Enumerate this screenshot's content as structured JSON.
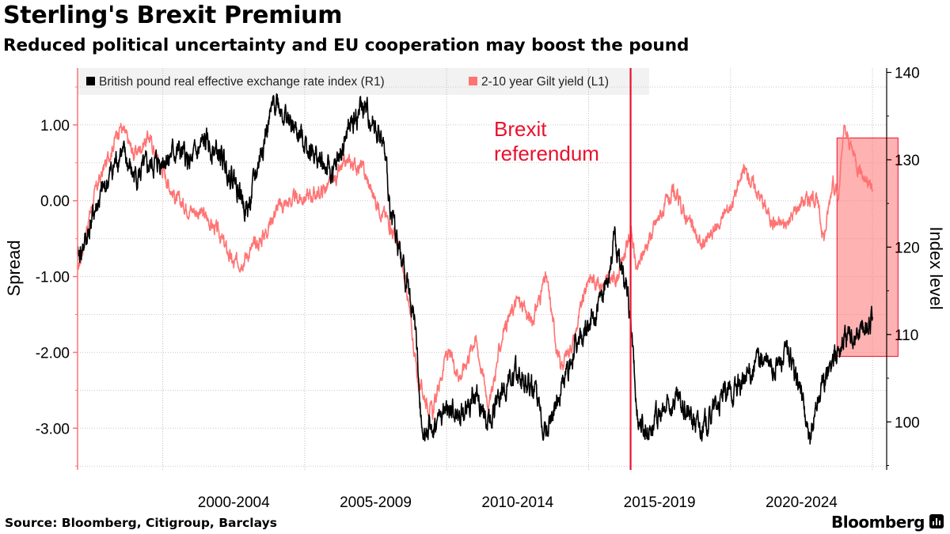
{
  "header": {
    "title": "Sterling's Brexit Premium",
    "subtitle": "Reduced political uncertainty and EU cooperation may boost the pound"
  },
  "footer": {
    "source": "Source: Bloomberg, Citigroup, Barclays",
    "brand": "Bloomberg"
  },
  "chart_data": {
    "type": "line",
    "title": "Sterling's Brexit Premium",
    "subtitle": "Reduced political uncertainty and EU cooperation may boost the pound",
    "xlabel": "",
    "ylabel_left": "Spread",
    "ylabel_right": "Index level",
    "xlim": [
      1997.0,
      2025.5
    ],
    "ylim_left": [
      -3.55,
      1.75
    ],
    "ylim_right": [
      94.5,
      140.5
    ],
    "yticks_left": [
      1.0,
      0.0,
      -1.0,
      -2.0,
      -3.0
    ],
    "yticks_left_labels": [
      "1.00",
      "0.00",
      "-1.00",
      "-2.00",
      "-3.00"
    ],
    "yticks_right": [
      140,
      130,
      120,
      110,
      100
    ],
    "yticks_right_labels": [
      "140",
      "130",
      "120",
      "110",
      "100"
    ],
    "xtick_positions": [
      2000.0,
      2005.0,
      2010.0,
      2015.0,
      2020.0,
      2025.0
    ],
    "x_category_labels": [
      {
        "label": "2000-2004",
        "center": 2002.5
      },
      {
        "label": "2005-2009",
        "center": 2007.5
      },
      {
        "label": "2010-2014",
        "center": 2012.5
      },
      {
        "label": "2015-2019",
        "center": 2017.5
      },
      {
        "label": "2020-2024",
        "center": 2022.5
      }
    ],
    "grid": true,
    "legend_position": "top-left",
    "series": [
      {
        "name": "British pound real effective exchange rate index (R1)",
        "axis": "right",
        "color": "#000000",
        "x": [
          1997.0,
          1997.3,
          1997.6,
          1998.0,
          1998.5,
          1999.0,
          1999.5,
          2000.0,
          2000.5,
          2001.0,
          2001.5,
          2002.0,
          2002.5,
          2003.0,
          2003.5,
          2004.0,
          2004.5,
          2005.0,
          2005.5,
          2006.0,
          2006.5,
          2007.0,
          2007.5,
          2007.8,
          2008.0,
          2008.3,
          2008.6,
          2008.9,
          2009.1,
          2009.5,
          2010.0,
          2010.5,
          2011.0,
          2011.5,
          2012.0,
          2012.5,
          2013.0,
          2013.5,
          2014.0,
          2014.5,
          2015.0,
          2015.5,
          2015.9,
          2016.3,
          2016.5,
          2016.7,
          2017.0,
          2017.5,
          2018.0,
          2018.5,
          2019.0,
          2019.5,
          2020.0,
          2020.5,
          2021.0,
          2021.5,
          2022.0,
          2022.5,
          2022.8,
          2023.0,
          2023.5,
          2024.0,
          2024.5,
          2025.0
        ],
        "values": [
          118.5,
          121.0,
          124.0,
          127.0,
          131.0,
          128.0,
          129.0,
          130.0,
          131.0,
          129.5,
          132.0,
          130.5,
          128.0,
          124.0,
          131.5,
          137.0,
          134.0,
          132.0,
          130.0,
          128.0,
          133.0,
          136.0,
          134.0,
          131.0,
          125.0,
          120.0,
          116.0,
          111.0,
          100.0,
          99.0,
          101.5,
          100.5,
          103.0,
          100.0,
          104.0,
          105.5,
          104.0,
          99.0,
          103.5,
          108.0,
          111.0,
          114.0,
          121.0,
          115.5,
          111.0,
          101.0,
          99.0,
          100.5,
          102.5,
          101.0,
          99.0,
          102.0,
          103.5,
          104.5,
          107.5,
          106.0,
          108.0,
          103.5,
          97.0,
          102.0,
          106.5,
          109.5,
          110.0,
          112.0
        ]
      },
      {
        "name": "2-10 year Gilt yield (L1)",
        "axis": "left",
        "color": "#ff7373",
        "x": [
          1997.0,
          1997.3,
          1997.6,
          1998.0,
          1998.5,
          1999.0,
          1999.5,
          2000.0,
          2000.5,
          2001.0,
          2001.5,
          2002.0,
          2002.5,
          2003.0,
          2003.5,
          2004.0,
          2004.5,
          2005.0,
          2005.5,
          2006.0,
          2006.5,
          2007.0,
          2007.5,
          2008.0,
          2008.3,
          2008.6,
          2009.0,
          2009.5,
          2010.0,
          2010.5,
          2011.0,
          2011.5,
          2012.0,
          2012.5,
          2013.0,
          2013.5,
          2014.0,
          2014.5,
          2015.0,
          2015.5,
          2016.0,
          2016.5,
          2016.7,
          2017.0,
          2017.5,
          2018.0,
          2018.5,
          2019.0,
          2019.5,
          2020.0,
          2020.5,
          2021.0,
          2021.5,
          2022.0,
          2022.5,
          2023.0,
          2023.3,
          2023.6,
          2023.8,
          2024.0,
          2024.5,
          2025.0
        ],
        "values": [
          -0.95,
          -0.4,
          0.1,
          0.5,
          1.0,
          0.6,
          0.85,
          0.4,
          0.0,
          -0.1,
          -0.2,
          -0.45,
          -0.85,
          -0.7,
          -0.5,
          -0.1,
          -0.0,
          0.05,
          0.1,
          0.25,
          0.5,
          0.45,
          0.0,
          -0.3,
          -0.6,
          -1.2,
          -2.4,
          -2.8,
          -2.0,
          -2.3,
          -1.8,
          -2.7,
          -1.7,
          -1.3,
          -1.6,
          -1.0,
          -2.2,
          -1.8,
          -1.0,
          -1.1,
          -1.0,
          -0.4,
          -0.95,
          -0.6,
          -0.2,
          0.1,
          -0.25,
          -0.6,
          -0.35,
          -0.05,
          0.4,
          0.1,
          -0.3,
          -0.3,
          0.0,
          0.05,
          -0.5,
          0.3,
          0.0,
          0.95,
          0.45,
          0.15
        ]
      }
    ],
    "annotations": [
      {
        "type": "vline",
        "x": 2016.48,
        "color": "#e8112d",
        "label_lines": [
          "Brexit",
          "referendum"
        ]
      },
      {
        "type": "highlight-box",
        "x_range": [
          2023.75,
          2025.9
        ],
        "y_range_right": [
          107.5,
          132.5
        ],
        "color": "#ff7373"
      }
    ]
  }
}
